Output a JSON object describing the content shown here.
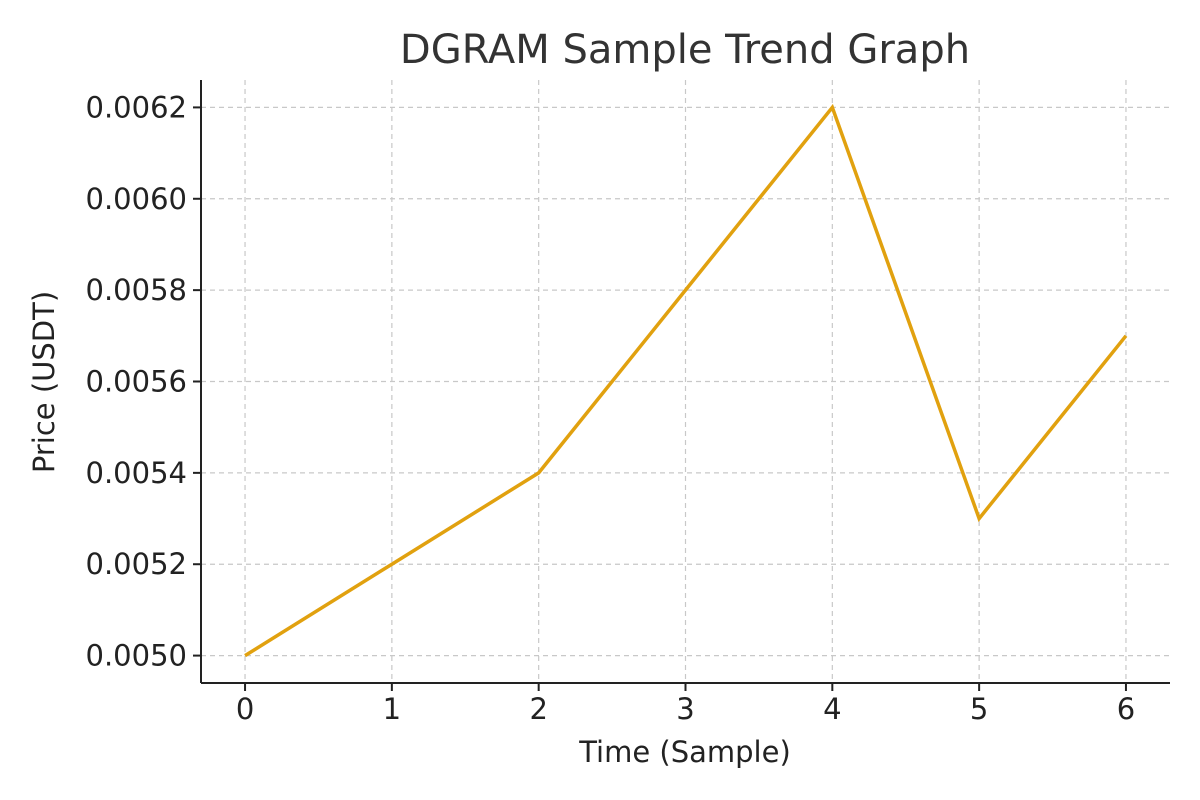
{
  "chart_data": {
    "type": "line",
    "title": "DGRAM Sample Trend Graph",
    "xlabel": "Time (Sample)",
    "ylabel": "Price (USDT)",
    "x": [
      0,
      1,
      2,
      3,
      4,
      5,
      6
    ],
    "series": [
      {
        "values": [
          0.005,
          0.0052,
          0.0054,
          0.0058,
          0.0062,
          0.0053,
          0.0057
        ],
        "color": "#E1A10F"
      }
    ],
    "x_ticks": [
      0,
      1,
      2,
      3,
      4,
      5,
      6
    ],
    "x_tick_labels": [
      "0",
      "1",
      "2",
      "3",
      "4",
      "5",
      "6"
    ],
    "y_ticks": [
      0.005,
      0.0052,
      0.0054,
      0.0056,
      0.0058,
      0.006,
      0.0062
    ],
    "y_tick_labels": [
      "0.0050",
      "0.0052",
      "0.0054",
      "0.0056",
      "0.0058",
      "0.0060",
      "0.0062"
    ],
    "xlim": [
      -0.3,
      6.3
    ],
    "ylim": [
      0.00494,
      0.00626
    ],
    "grid": true,
    "legend": "none"
  }
}
